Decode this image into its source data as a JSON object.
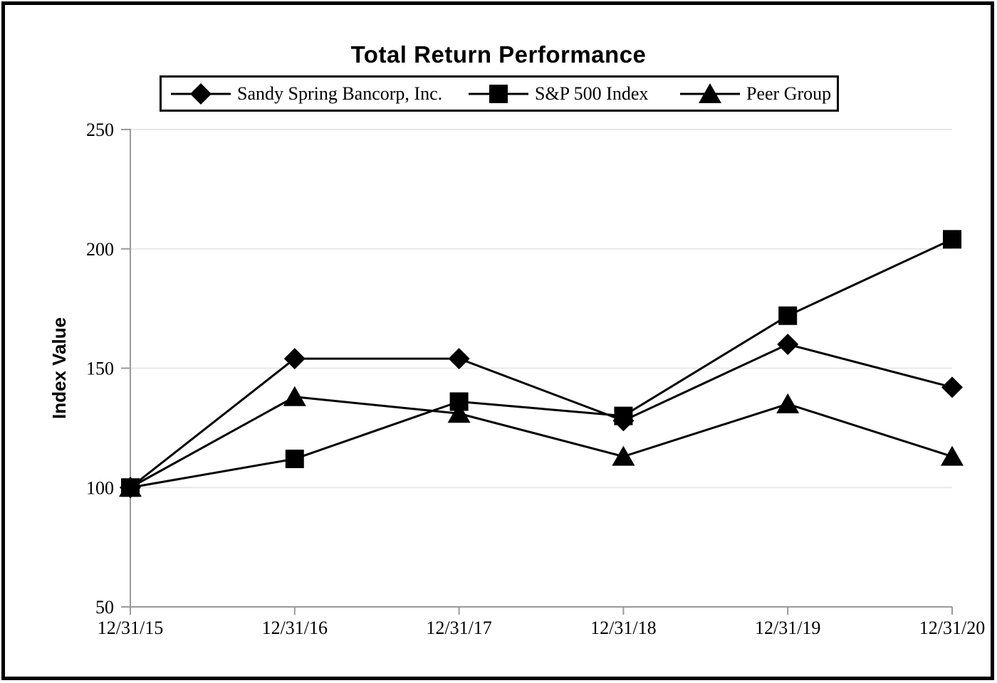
{
  "page": {
    "title": "Total Return Performance"
  },
  "chart_data": {
    "type": "line",
    "title": "Total Return Performance",
    "xlabel": "",
    "ylabel": "Index Value",
    "categories": [
      "12/31/15",
      "12/31/16",
      "12/31/17",
      "12/31/18",
      "12/31/19",
      "12/31/20"
    ],
    "series": [
      {
        "name": "Sandy Spring Bancorp, Inc.",
        "marker": "diamond",
        "values": [
          100,
          154,
          154,
          128,
          160,
          142
        ]
      },
      {
        "name": "S&P 500 Index",
        "marker": "square",
        "values": [
          100,
          112,
          136,
          130,
          172,
          204
        ]
      },
      {
        "name": "Peer Group",
        "marker": "triangle",
        "values": [
          100,
          138,
          131,
          113,
          135,
          113
        ]
      }
    ],
    "ylim": [
      50,
      250
    ],
    "yticks": [
      50,
      100,
      150,
      200,
      250
    ],
    "grid": true,
    "legend_position": "top",
    "colors": {
      "series": "#000000",
      "gridline": "#e8e8e8",
      "axis": "#999999",
      "text": "#000000",
      "frame": "#000000"
    }
  }
}
